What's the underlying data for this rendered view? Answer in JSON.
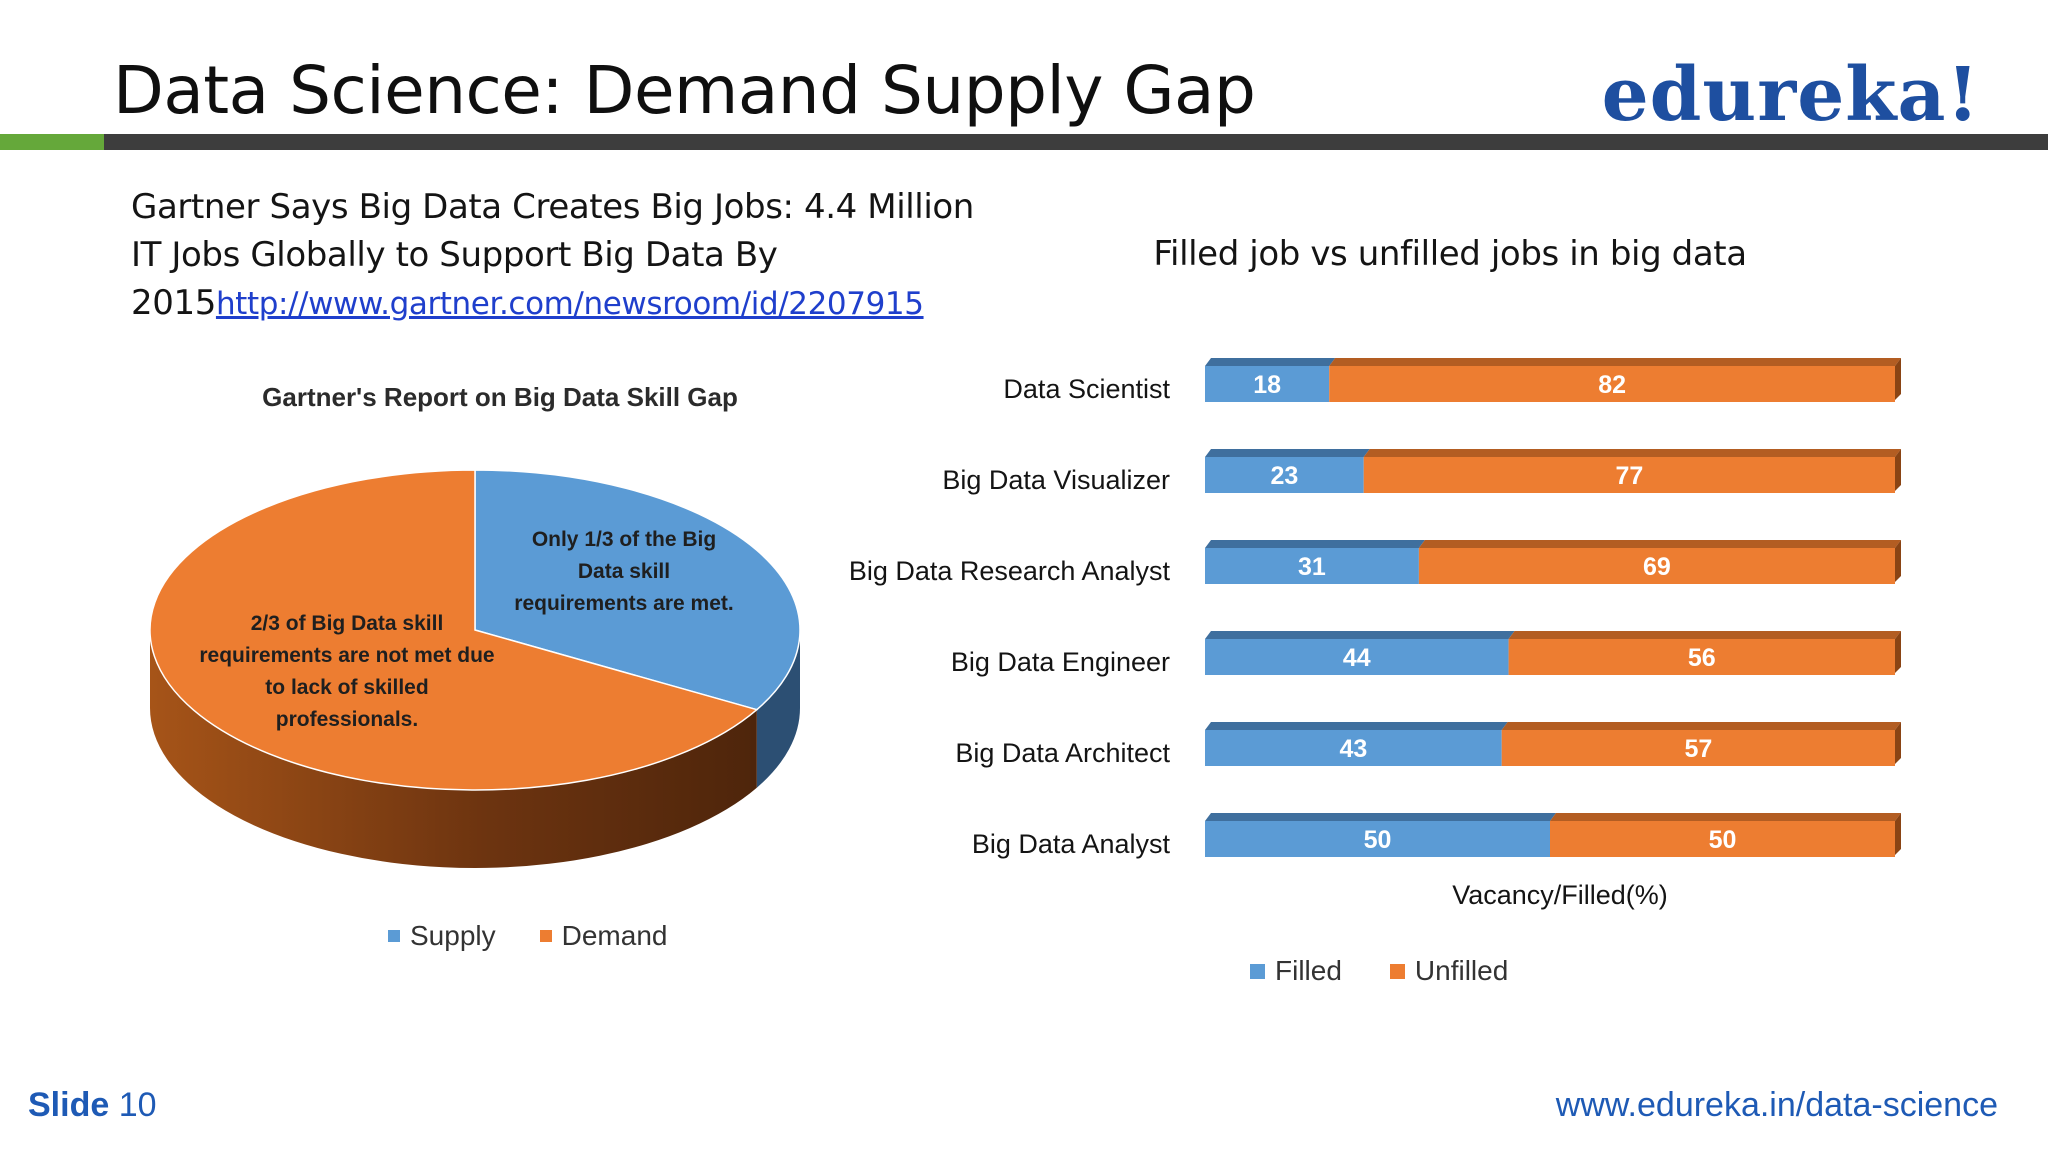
{
  "header": {
    "title": "Data Science: Demand Supply Gap",
    "logo_text": "edureka!"
  },
  "intro": {
    "text": "Gartner Says Big Data Creates Big Jobs: 4.4 Million IT Jobs Globally to Support Big Data By 2015",
    "link": "http://www.gartner.com/newsroom/id/2207915"
  },
  "chart_data": [
    {
      "type": "pie",
      "title": "Gartner's Report on Big Data Skill Gap",
      "categories": [
        "Supply",
        "Demand"
      ],
      "values": [
        33.3,
        66.7
      ],
      "colors": [
        "#5b9bd5",
        "#ed7d31"
      ],
      "annotations": {
        "supply": "Only 1/3 of the Big Data skill requirements are met.",
        "demand": "2/3 of Big Data skill requirements are not met due to lack of skilled professionals."
      },
      "legend": [
        "Supply",
        "Demand"
      ],
      "legend_position": "bottom"
    },
    {
      "type": "bar",
      "orientation": "horizontal",
      "stacked": true,
      "title": "Filled job vs unfilled jobs in big data",
      "categories": [
        "Data Scientist",
        "Big Data Visualizer",
        "Big Data Research Analyst",
        "Big Data Engineer",
        "Big Data Architect",
        "Big Data Analyst"
      ],
      "series": [
        {
          "name": "Filled",
          "values": [
            18,
            23,
            31,
            44,
            43,
            50
          ],
          "color": "#5b9bd5"
        },
        {
          "name": "Unfilled",
          "values": [
            82,
            77,
            69,
            56,
            57,
            50
          ],
          "color": "#ed7d31"
        }
      ],
      "xlabel": "Vacancy/Filled(%)",
      "xlim": [
        0,
        100
      ],
      "grid": false,
      "legend_position": "bottom"
    }
  ],
  "footer": {
    "slide_label": "Slide",
    "slide_number": "10",
    "website": "www.edureka.in/data-science"
  }
}
